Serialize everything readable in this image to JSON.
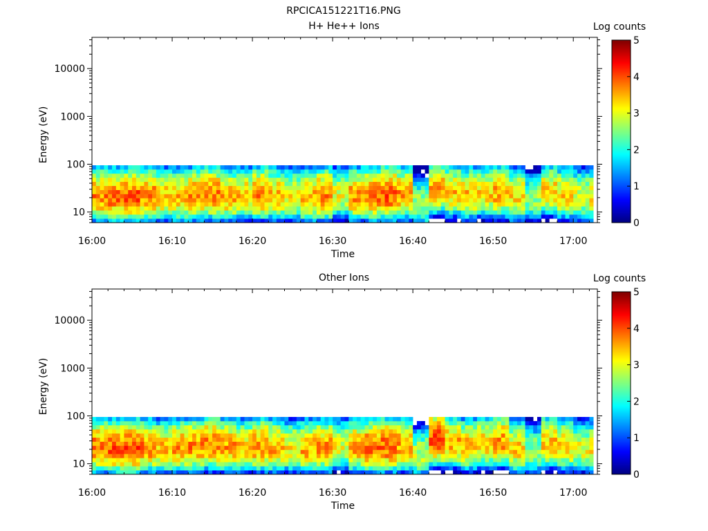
{
  "figure_title": "RPCICA151221T16.PNG",
  "chart_data": [
    {
      "type": "heatmap",
      "title": "H+ He++ Ions",
      "xlabel": "Time",
      "ylabel": "Energy (eV)",
      "x_ticks": [
        "16:00",
        "16:10",
        "16:20",
        "16:30",
        "16:40",
        "16:50",
        "17:00"
      ],
      "x_range": [
        "16:00",
        "17:03"
      ],
      "y_scale": "log",
      "y_ticks": [
        10,
        100,
        1000,
        10000
      ],
      "y_tick_labels": [
        "10",
        "100",
        "1000",
        "10000"
      ],
      "y_range": [
        6,
        45000
      ],
      "data_energy_range": [
        6,
        95
      ],
      "colorbar": {
        "label": "Log counts",
        "range": [
          0,
          5
        ],
        "ticks": [
          "0",
          "1",
          "2",
          "3",
          "4",
          "5"
        ],
        "colormap": "jet"
      },
      "time_bins_min": [
        0,
        2,
        4,
        6,
        8,
        10,
        12,
        14,
        16,
        18,
        20,
        22,
        24,
        26,
        28,
        30,
        32,
        34,
        36,
        38,
        40,
        42,
        44,
        46,
        48,
        50,
        52,
        54,
        56,
        58,
        60,
        62
      ],
      "peak_energy_eV": [
        20,
        20,
        20,
        21,
        20,
        20,
        21,
        22,
        20,
        21,
        22,
        21,
        20,
        20,
        21,
        22,
        21,
        21,
        22,
        22,
        14,
        28,
        25,
        22,
        24,
        24,
        20,
        18,
        26,
        22,
        20,
        20
      ],
      "peak_log_counts": [
        3.7,
        3.8,
        3.9,
        3.7,
        3.4,
        3.5,
        3.6,
        3.7,
        3.5,
        3.4,
        3.7,
        3.4,
        3.2,
        3.5,
        3.7,
        3.0,
        3.6,
        3.8,
        3.9,
        3.6,
        2.7,
        3.5,
        3.4,
        3.4,
        3.3,
        3.5,
        3.3,
        2.6,
        3.3,
        3.3,
        3.0,
        3.2
      ]
    },
    {
      "type": "heatmap",
      "title": "Other Ions",
      "xlabel": "Time",
      "ylabel": "Energy (eV)",
      "x_ticks": [
        "16:00",
        "16:10",
        "16:20",
        "16:30",
        "16:40",
        "16:50",
        "17:00"
      ],
      "x_range": [
        "16:00",
        "17:03"
      ],
      "y_scale": "log",
      "y_ticks": [
        10,
        100,
        1000,
        10000
      ],
      "y_tick_labels": [
        "10",
        "100",
        "1000",
        "10000"
      ],
      "y_range": [
        6,
        45000
      ],
      "data_energy_range": [
        6,
        95
      ],
      "colorbar": {
        "label": "Log counts",
        "range": [
          0,
          5
        ],
        "ticks": [
          "0",
          "1",
          "2",
          "3",
          "4",
          "5"
        ],
        "colormap": "jet"
      },
      "time_bins_min": [
        0,
        2,
        4,
        6,
        8,
        10,
        12,
        14,
        16,
        18,
        20,
        22,
        24,
        26,
        28,
        30,
        32,
        34,
        36,
        38,
        40,
        42,
        44,
        46,
        48,
        50,
        52,
        54,
        56,
        58,
        60,
        62
      ],
      "peak_energy_eV": [
        21,
        20,
        20,
        21,
        20,
        21,
        22,
        24,
        22,
        21,
        22,
        21,
        20,
        20,
        21,
        22,
        21,
        21,
        22,
        22,
        15,
        30,
        26,
        22,
        25,
        28,
        20,
        18,
        26,
        22,
        20,
        20
      ],
      "peak_log_counts": [
        3.8,
        3.9,
        4.0,
        3.7,
        3.4,
        3.6,
        3.7,
        3.8,
        3.6,
        3.4,
        3.7,
        3.5,
        3.2,
        3.5,
        3.6,
        3.0,
        3.6,
        3.8,
        3.9,
        3.6,
        2.8,
        4.0,
        3.5,
        3.4,
        3.4,
        3.6,
        3.3,
        2.6,
        3.4,
        3.3,
        3.0,
        3.2
      ]
    }
  ]
}
